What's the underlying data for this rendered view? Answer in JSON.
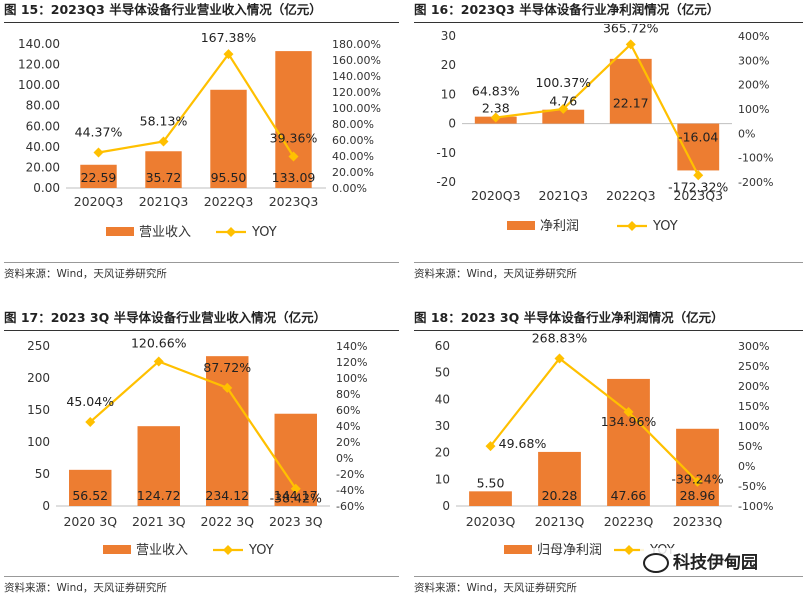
{
  "panels": [
    {
      "title": "图 15：2023Q3 半导体设备行业营业收入情况（亿元）",
      "source": "资料来源：Wind，天风证券研究所"
    },
    {
      "title": "图 16：2023Q3 半导体设备行业净利润情况（亿元）",
      "source": "资料来源：Wind，天风证券研究所"
    },
    {
      "title": "图 17：2023 3Q 半导体设备行业营业收入情况（亿元）",
      "source": "资料来源：Wind，天风证券研究所"
    },
    {
      "title": "图 18：2023 3Q 半导体设备行业净利润情况（亿元）",
      "source": "资料来源：Wind，天风证券研究所"
    }
  ],
  "watermark": {
    "text": "科技伊甸园",
    "icon": "wechat-logo-icon"
  },
  "colors": {
    "bar": "#ED7D31",
    "line": "#FFC000",
    "axis": "#BFBFBF",
    "text": "#333333"
  },
  "chart_data": [
    {
      "type": "bar+line",
      "title": "图 15：2023Q3 半导体设备行业营业收入情况（亿元）",
      "categories": [
        "2020Q3",
        "2021Q3",
        "2022Q3",
        "2023Q3"
      ],
      "series": [
        {
          "name": "营业收入",
          "type": "bar",
          "axis": "left",
          "values": [
            22.59,
            35.72,
            95.5,
            133.09
          ],
          "labels": [
            "22.59",
            "35.72",
            "95.50",
            "133.09"
          ]
        },
        {
          "name": "YOY",
          "type": "line",
          "axis": "right",
          "values": [
            44.37,
            58.13,
            167.38,
            39.36
          ],
          "labels": [
            "44.37%",
            "58.13%",
            "167.38%",
            "39.36%"
          ]
        }
      ],
      "left_axis": {
        "min": 0,
        "max": 140,
        "step": 20,
        "ticks": [
          "0.00",
          "20.00",
          "40.00",
          "60.00",
          "80.00",
          "100.00",
          "120.00",
          "140.00"
        ]
      },
      "right_axis": {
        "min": 0,
        "max": 180,
        "step": 20,
        "ticks": [
          "0.00%",
          "20.00%",
          "40.00%",
          "60.00%",
          "80.00%",
          "100.00%",
          "120.00%",
          "140.00%",
          "160.00%",
          "180.00%"
        ]
      },
      "legend": [
        "营业收入",
        "YOY"
      ]
    },
    {
      "type": "bar+line",
      "title": "图 16：2023Q3 半导体设备行业净利润情况（亿元）",
      "categories": [
        "2020Q3",
        "2021Q3",
        "2022Q3",
        "2023Q3"
      ],
      "series": [
        {
          "name": "净利润",
          "type": "bar",
          "axis": "left",
          "values": [
            2.38,
            4.76,
            22.17,
            -16.04
          ],
          "labels": [
            "2.38",
            "4.76",
            "22.17",
            "-16.04"
          ]
        },
        {
          "name": "YOY",
          "type": "line",
          "axis": "right",
          "values": [
            64.83,
            100.37,
            365.72,
            -172.32
          ],
          "labels": [
            "64.83%",
            "100.37%",
            "365.72%",
            "-172.32%"
          ]
        }
      ],
      "left_axis": {
        "min": -20,
        "max": 30,
        "step": 10,
        "ticks": [
          "-20",
          "-10",
          "0",
          "10",
          "20",
          "30"
        ]
      },
      "right_axis": {
        "min": -200,
        "max": 400,
        "step": 100,
        "ticks": [
          "-200%",
          "-100%",
          "0%",
          "100%",
          "200%",
          "300%",
          "400%"
        ]
      },
      "legend": [
        "净利润",
        "YOY"
      ]
    },
    {
      "type": "bar+line",
      "title": "图 17：2023 3Q 半导体设备行业营业收入情况（亿元）",
      "categories": [
        "2020 3Q",
        "2021 3Q",
        "2022 3Q",
        "2023 3Q"
      ],
      "series": [
        {
          "name": "营业收入",
          "type": "bar",
          "axis": "left",
          "values": [
            56.52,
            124.72,
            234.12,
            144.17
          ],
          "labels": [
            "56.52",
            "124.72",
            "234.12",
            "144.17"
          ]
        },
        {
          "name": "YOY",
          "type": "line",
          "axis": "right",
          "values": [
            45.04,
            120.66,
            87.72,
            -38.42
          ],
          "labels": [
            "45.04%",
            "120.66%",
            "87.72%",
            "-38.42%"
          ]
        }
      ],
      "left_axis": {
        "min": 0,
        "max": 250,
        "step": 50,
        "ticks": [
          "0",
          "50",
          "100",
          "150",
          "200",
          "250"
        ]
      },
      "right_axis": {
        "min": -60,
        "max": 140,
        "step": 20,
        "ticks": [
          "-60%",
          "-40%",
          "-20%",
          "0%",
          "20%",
          "40%",
          "60%",
          "80%",
          "100%",
          "120%",
          "140%"
        ]
      },
      "legend": [
        "营业收入",
        "YOY"
      ]
    },
    {
      "type": "bar+line",
      "title": "图 18：2023 3Q 半导体设备行业净利润情况（亿元）",
      "categories": [
        "20203Q",
        "20213Q",
        "20223Q",
        "20233Q"
      ],
      "series": [
        {
          "name": "归母净利润",
          "type": "bar",
          "axis": "left",
          "values": [
            5.5,
            20.28,
            47.66,
            28.96
          ],
          "labels": [
            "5.50",
            "20.28",
            "47.66",
            "28.96"
          ]
        },
        {
          "name": "YOY",
          "type": "line",
          "axis": "right",
          "values": [
            49.68,
            268.83,
            134.96,
            -39.24
          ],
          "labels": [
            "49.68%",
            "268.83%",
            "134.96%",
            "-39.24%"
          ]
        }
      ],
      "left_axis": {
        "min": 0,
        "max": 60,
        "step": 10,
        "ticks": [
          "0",
          "10",
          "20",
          "30",
          "40",
          "50",
          "60"
        ]
      },
      "right_axis": {
        "min": -100,
        "max": 300,
        "step": 50,
        "ticks": [
          "-100%",
          "-50%",
          "0%",
          "50%",
          "100%",
          "150%",
          "200%",
          "250%",
          "300%"
        ]
      },
      "legend": [
        "归母净利润",
        "YOY"
      ]
    }
  ]
}
